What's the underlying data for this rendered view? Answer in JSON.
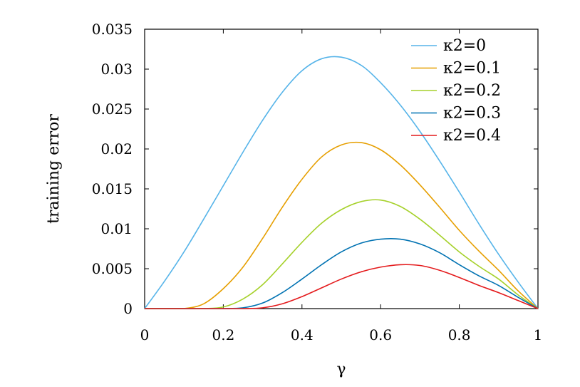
{
  "chart_data": {
    "type": "line",
    "xlabel": "γ",
    "ylabel": "training error",
    "xlim": [
      0,
      1
    ],
    "ylim": [
      0,
      0.035
    ],
    "xticks": [
      0,
      0.2,
      0.4,
      0.6,
      0.8,
      1
    ],
    "xtick_labels": [
      "0",
      "0.2",
      "0.4",
      "0.6",
      "0.8",
      "1"
    ],
    "yticks": [
      0,
      0.005,
      0.01,
      0.015,
      0.02,
      0.025,
      0.03,
      0.035
    ],
    "ytick_labels": [
      "0",
      "0.005",
      "0.01",
      "0.015",
      "0.02",
      "0.025",
      "0.03",
      "0.035"
    ],
    "grid": false,
    "legend_position": "top-right",
    "x": [
      0,
      0.05,
      0.1,
      0.15,
      0.2,
      0.25,
      0.3,
      0.35,
      0.4,
      0.45,
      0.5,
      0.55,
      0.6,
      0.65,
      0.7,
      0.75,
      0.8,
      0.85,
      0.9,
      0.95,
      1
    ],
    "series": [
      {
        "name": "κ2=0",
        "color": "#56b4e9",
        "values": [
          0,
          0.0034,
          0.0071,
          0.0112,
          0.0154,
          0.0196,
          0.0236,
          0.0271,
          0.0298,
          0.0313,
          0.0315,
          0.0305,
          0.0283,
          0.0255,
          0.0222,
          0.0185,
          0.0146,
          0.0106,
          0.0068,
          0.0033,
          0
        ]
      },
      {
        "name": "κ2=0.1",
        "color": "#e69f00",
        "values": [
          0,
          0,
          0,
          0.0006,
          0.0025,
          0.0052,
          0.0088,
          0.0127,
          0.0162,
          0.019,
          0.0205,
          0.0208,
          0.0199,
          0.018,
          0.0155,
          0.0127,
          0.0098,
          0.0072,
          0.0048,
          0.0022,
          0
        ]
      },
      {
        "name": "κ2=0.2",
        "color": "#a6d12b",
        "values": [
          0,
          0,
          0,
          0,
          0.0002,
          0.0012,
          0.003,
          0.0056,
          0.0083,
          0.0107,
          0.0124,
          0.0134,
          0.0136,
          0.0128,
          0.0112,
          0.0092,
          0.0071,
          0.0053,
          0.0037,
          0.0017,
          0
        ]
      },
      {
        "name": "κ2=0.3",
        "color": "#0072b2",
        "values": [
          0,
          0,
          0,
          0,
          0,
          0.0001,
          0.0007,
          0.002,
          0.0037,
          0.0055,
          0.0071,
          0.0082,
          0.0087,
          0.0087,
          0.0081,
          0.007,
          0.0055,
          0.0041,
          0.0029,
          0.0014,
          0
        ]
      },
      {
        "name": "κ2=0.4",
        "color": "#e41a1c",
        "values": [
          0,
          0,
          0,
          0,
          0,
          0,
          0.0001,
          0.0006,
          0.0015,
          0.0026,
          0.0037,
          0.0046,
          0.0052,
          0.0055,
          0.0054,
          0.0048,
          0.0039,
          0.0029,
          0.002,
          0.001,
          0
        ]
      }
    ]
  }
}
